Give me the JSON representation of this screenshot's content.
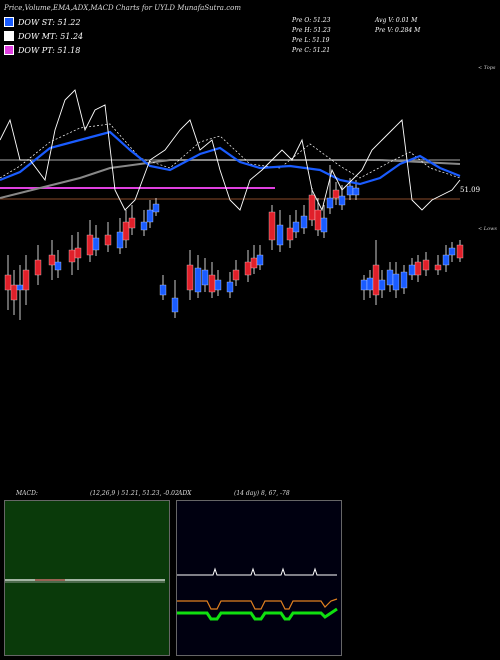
{
  "header": {
    "title": "Price,Volume,EMA,ADX,MACD Charts for UYLD MunafaSutra.com"
  },
  "dow_legend": [
    {
      "label": "DOW ST: 51.22",
      "color": "#1a5cff"
    },
    {
      "label": "DOW MT: 51.24",
      "color": "#ffffff"
    },
    {
      "label": "DOW PT: 51.18",
      "color": "#e040e0"
    }
  ],
  "ohlc": {
    "open": "Pre  O: 51.23",
    "high": "Pre  H: 51.23",
    "low": "Pre  L: 51.19",
    "close": "Pre  C: 51.21",
    "avg_volume": "Avg V: 0.01 M",
    "pre_volume": "Pre  V: 0.284  M"
  },
  "edges": {
    "tops": "< Tops",
    "lows": "< Lows"
  },
  "last_price": "51.09",
  "macd": {
    "label": "MACD:",
    "params": "(12,26,9 ) 51.21, 51.23, -0.02"
  },
  "adx": {
    "label": "ADX",
    "params": "(14  day) 8, 67, -78"
  },
  "colors": {
    "up": "#e0202a",
    "down": "#1a5cff",
    "ema_short": "#1a5cff",
    "ema_long": "#888888",
    "dow_pt": "#e040e0",
    "macd_bg": "#0a3a0a"
  }
}
